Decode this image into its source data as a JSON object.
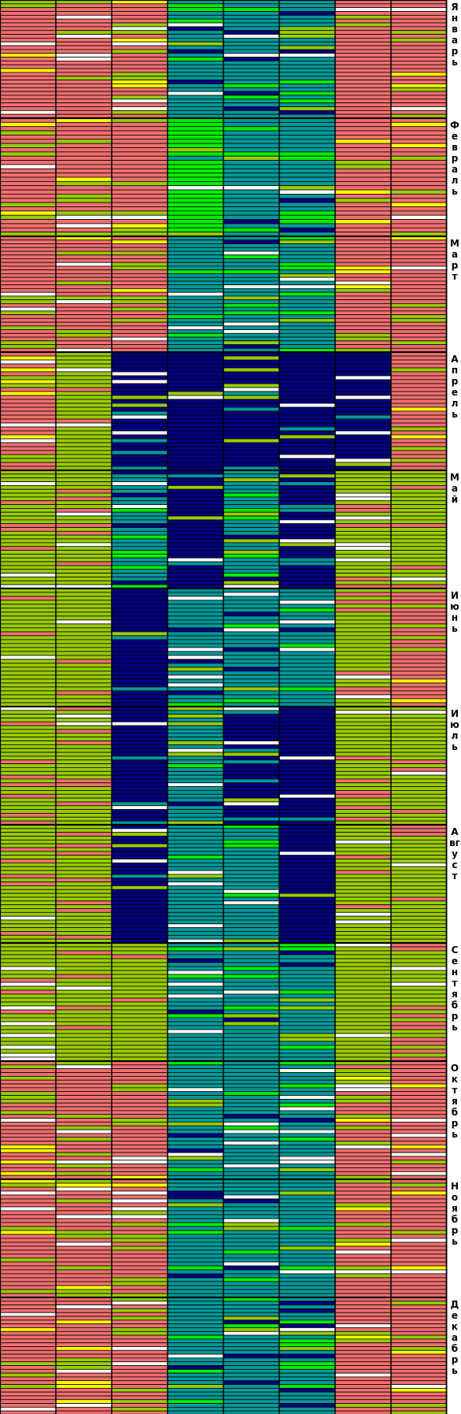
{
  "chart_data": {
    "type": "heatmap",
    "title": "",
    "xlabel": "",
    "ylabel": "",
    "legend": "none",
    "grid": true,
    "months": [
      "Январь",
      "Февраль",
      "Март",
      "Апрель",
      "Май",
      "Июнь",
      "Июль",
      "Август",
      "Сентябрь",
      "Октябрь",
      "Ноябрь",
      "Декабрь"
    ],
    "days_per_month": [
      31,
      28,
      31,
      30,
      31,
      30,
      31,
      31,
      30,
      31,
      30,
      31
    ],
    "columns": 8,
    "colors": {
      "red": "#f07070",
      "olive": "#99cc00",
      "teal": "#009999",
      "navy": "#000080",
      "green": "#00ee00",
      "white": "#ffffff",
      "yellow": "#ffff00"
    },
    "dominant_by_month": [
      [
        "red",
        "red",
        "red",
        "teal",
        "teal",
        "teal",
        "red",
        "red"
      ],
      [
        "red",
        "red",
        "red",
        "green",
        "teal",
        "teal",
        "red",
        "red"
      ],
      [
        "red",
        "red",
        "red",
        "teal",
        "teal",
        "teal",
        "red",
        "red"
      ],
      [
        "red",
        "olive",
        "navy",
        "navy",
        "navy",
        "navy",
        "navy",
        "red"
      ],
      [
        "olive",
        "olive",
        "teal",
        "navy",
        "teal",
        "navy",
        "olive",
        "olive"
      ],
      [
        "olive",
        "olive",
        "navy",
        "teal",
        "teal",
        "teal",
        "olive",
        "red"
      ],
      [
        "olive",
        "olive",
        "navy",
        "teal",
        "navy",
        "navy",
        "olive",
        "olive"
      ],
      [
        "olive",
        "olive",
        "navy",
        "teal",
        "teal",
        "navy",
        "olive",
        "olive"
      ],
      [
        "olive",
        "olive",
        "olive",
        "teal",
        "teal",
        "teal",
        "olive",
        "olive"
      ],
      [
        "red",
        "red",
        "red",
        "teal",
        "teal",
        "teal",
        "red",
        "red"
      ],
      [
        "red",
        "red",
        "red",
        "teal",
        "teal",
        "teal",
        "red",
        "red"
      ],
      [
        "red",
        "red",
        "red",
        "teal",
        "teal",
        "teal",
        "red",
        "red"
      ]
    ]
  }
}
